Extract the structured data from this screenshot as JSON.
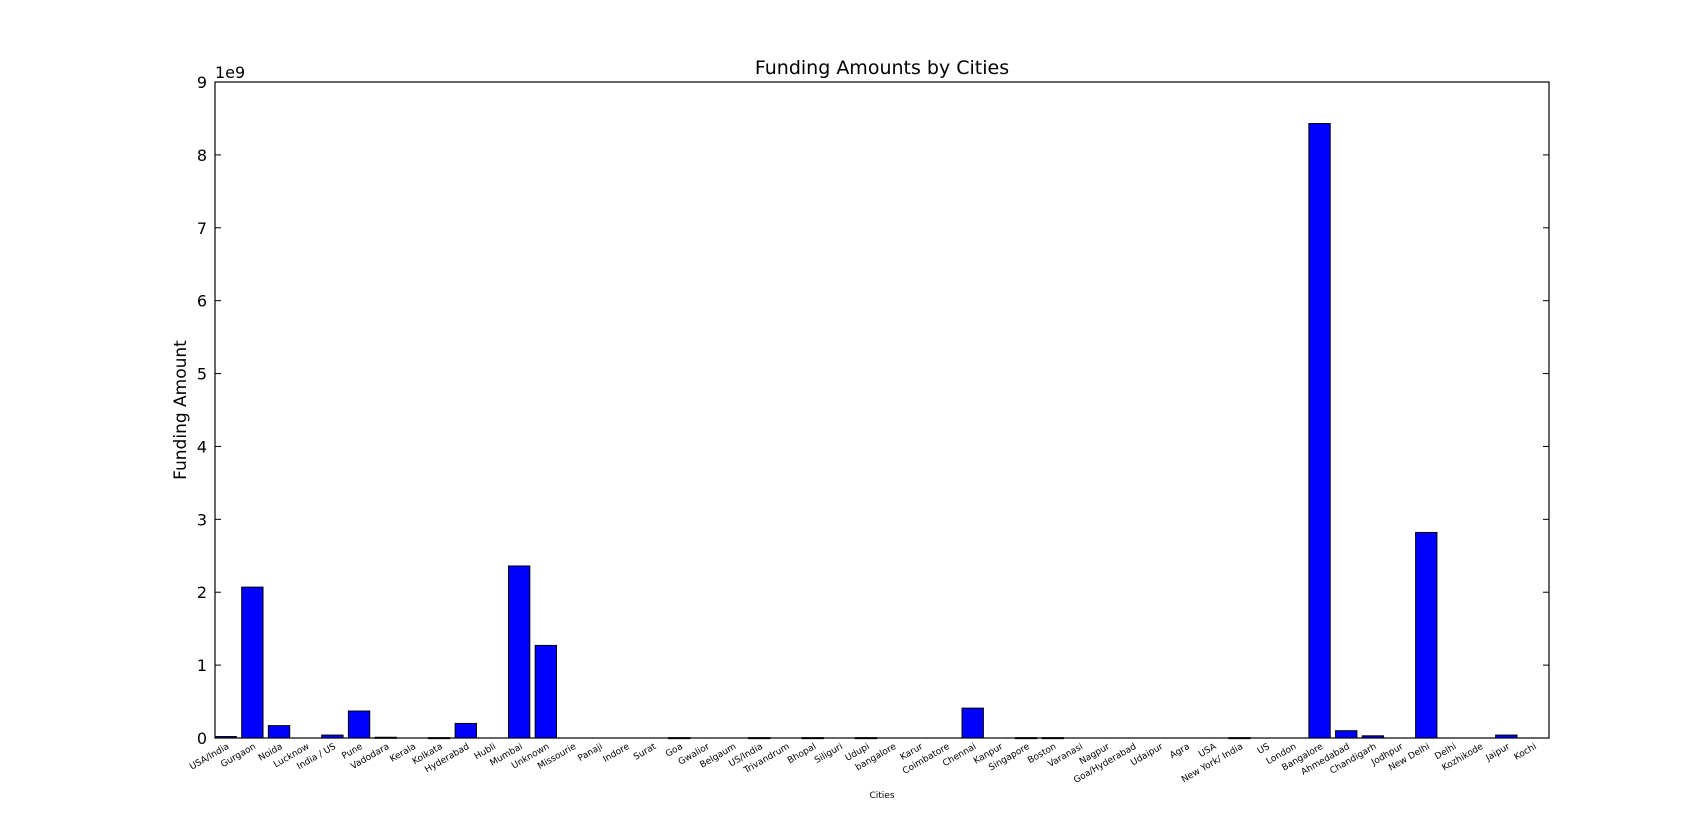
{
  "chart_data": {
    "type": "bar",
    "title": "Funding Amounts by Cities",
    "xlabel": "Cities",
    "ylabel": "Funding Amount",
    "y_scale_label": "1e9",
    "ylim": [
      0,
      9
    ],
    "yticks": [
      0,
      1,
      2,
      3,
      4,
      5,
      6,
      7,
      8,
      9
    ],
    "grid": false,
    "legend": "none",
    "bar_color": "#0000ff",
    "categories": [
      "USA/India",
      "Gurgaon",
      "Noida",
      "Lucknow",
      "India / US",
      "Pune",
      "Vadodara",
      "Kerala",
      "Kolkata",
      "Hyderabad",
      "Hubli",
      "Mumbai",
      "Unknown",
      "Missourie",
      "Panaji",
      "Indore",
      "Surat",
      "Goa",
      "Gwalior",
      "Belgaum",
      "US/India",
      "Trivandrum",
      "Bhopal",
      "Siliguri",
      "Udupi",
      "bangalore",
      "Karur",
      "Coimbatore",
      "Chennai",
      "Kanpur",
      "Singapore",
      "Boston",
      "Varanasi",
      "Nagpur",
      "Goa/Hyderabad",
      "Udaipur",
      "Agra",
      "USA",
      "New York/ India",
      "US",
      "London",
      "Bangalore",
      "Ahmedabad",
      "Chandigarh",
      "Jodhpur",
      "New Delhi",
      "Delhi",
      "Kozhikode",
      "Jaipur",
      "Kochi"
    ],
    "values": [
      0.02,
      2.07,
      0.17,
      0.0,
      0.04,
      0.37,
      0.01,
      0.0,
      0.005,
      0.2,
      0.0,
      2.36,
      1.27,
      0.0,
      0.0,
      0.0,
      0.0,
      0.005,
      0.0,
      0.0,
      0.005,
      0.0,
      0.005,
      0.0,
      0.005,
      0.0,
      0.0,
      0.0,
      0.41,
      0.0,
      0.005,
      0.005,
      0.0,
      0.0,
      0.0,
      0.0,
      0.0,
      0.0,
      0.005,
      0.0,
      0.0,
      8.43,
      0.1,
      0.03,
      0.0,
      2.82,
      0.0,
      0.0,
      0.04,
      0.0
    ]
  }
}
